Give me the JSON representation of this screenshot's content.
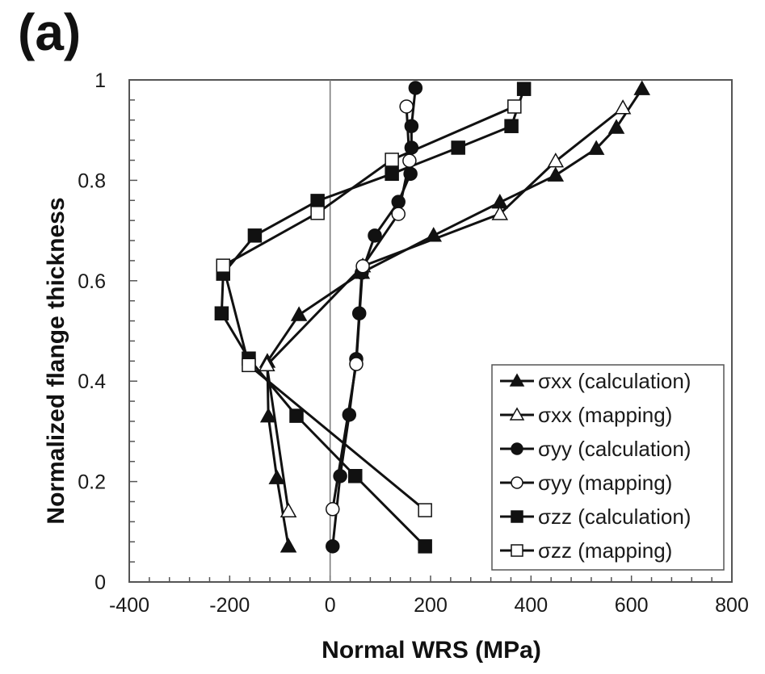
{
  "panel_label": "(a)",
  "chart_data": {
    "type": "line",
    "title": "",
    "xlabel": "Normal WRS (MPa)",
    "ylabel": "Normalized flange thickness",
    "xlim": [
      -400,
      800
    ],
    "ylim": [
      0,
      1
    ],
    "x_ticks": [
      -400,
      -200,
      0,
      200,
      400,
      600,
      800
    ],
    "x_tick_labels": [
      "-400",
      "-200",
      "0",
      "200",
      "400",
      "600",
      "800"
    ],
    "x_minor_step": 40,
    "y_ticks": [
      0,
      0.2,
      0.4,
      0.6,
      0.8,
      1
    ],
    "y_tick_labels": [
      "0",
      "0.2",
      "0.4",
      "0.6",
      "0.8",
      "1"
    ],
    "y_minor_step": 0.04,
    "grid": false,
    "reference_line_x": 0,
    "legend_position": "bottom-right",
    "series": [
      {
        "name": "σxx (calculation)",
        "marker": "triangle",
        "filled": true,
        "points": [
          [
            621,
            0.982
          ],
          [
            570,
            0.905
          ],
          [
            530,
            0.863
          ],
          [
            449,
            0.81
          ],
          [
            338,
            0.756
          ],
          [
            206,
            0.69
          ],
          [
            63,
            0.616
          ],
          [
            -62,
            0.532
          ],
          [
            -125,
            0.439
          ],
          [
            -123,
            0.33
          ],
          [
            -106,
            0.207
          ],
          [
            -83,
            0.071
          ]
        ]
      },
      {
        "name": "σxx (mapping)",
        "marker": "triangle",
        "filled": false,
        "points": [
          [
            583,
            0.944
          ],
          [
            449,
            0.838
          ],
          [
            338,
            0.733
          ],
          [
            65,
            0.629
          ],
          [
            -126,
            0.432
          ],
          [
            -83,
            0.141
          ]
        ]
      },
      {
        "name": "σyy (calculation)",
        "marker": "circle",
        "filled": true,
        "points": [
          [
            170,
            0.984
          ],
          [
            162,
            0.908
          ],
          [
            162,
            0.865
          ],
          [
            160,
            0.813
          ],
          [
            136,
            0.757
          ],
          [
            89,
            0.69
          ],
          [
            63,
            0.616
          ],
          [
            58,
            0.535
          ],
          [
            52,
            0.444
          ],
          [
            38,
            0.333
          ],
          [
            20,
            0.211
          ],
          [
            5,
            0.071
          ]
        ]
      },
      {
        "name": "σyy (mapping)",
        "marker": "circle",
        "filled": false,
        "points": [
          [
            152,
            0.947
          ],
          [
            158,
            0.839
          ],
          [
            136,
            0.733
          ],
          [
            65,
            0.629
          ],
          [
            52,
            0.434
          ],
          [
            5,
            0.145
          ]
        ]
      },
      {
        "name": "σzz (calculation)",
        "marker": "square",
        "filled": true,
        "points": [
          [
            386,
            0.982
          ],
          [
            361,
            0.908
          ],
          [
            255,
            0.865
          ],
          [
            123,
            0.813
          ],
          [
            -25,
            0.759
          ],
          [
            -150,
            0.69
          ],
          [
            -213,
            0.614
          ],
          [
            -216,
            0.535
          ],
          [
            -162,
            0.445
          ],
          [
            -67,
            0.331
          ],
          [
            50,
            0.211
          ],
          [
            189,
            0.071
          ]
        ]
      },
      {
        "name": "σzz (mapping)",
        "marker": "square",
        "filled": false,
        "points": [
          [
            367,
            0.947
          ],
          [
            123,
            0.841
          ],
          [
            -25,
            0.735
          ],
          [
            -213,
            0.63
          ],
          [
            -162,
            0.432
          ],
          [
            189,
            0.143
          ]
        ]
      }
    ]
  },
  "colors": {
    "line": "#111111",
    "marker_fill_filled": "#111111",
    "marker_fill_open": "#ffffff",
    "axis": "#555555",
    "reference_line": "#777777"
  }
}
